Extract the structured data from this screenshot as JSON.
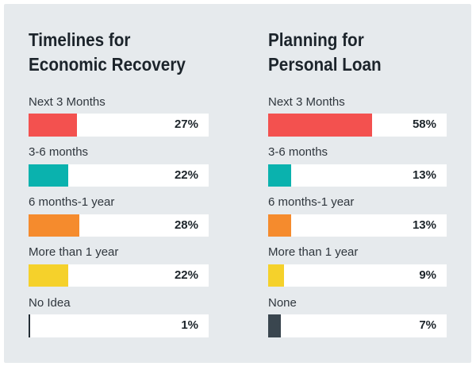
{
  "page": {
    "background": "#ffffff",
    "card_background": "#e6eaed"
  },
  "chart_data": [
    {
      "type": "bar",
      "orientation": "horizontal",
      "title": "Timelines for Economic Recovery",
      "title_lines": [
        "Timelines for",
        "Economic Recovery"
      ],
      "categories": [
        "Next 3 Months",
        "3-6 months",
        "6 months-1 year",
        "More than 1 year",
        "No Idea"
      ],
      "values": [
        27,
        22,
        28,
        22,
        1
      ],
      "value_labels": [
        "27%",
        "22%",
        "28%",
        "22%",
        "1%"
      ],
      "bar_colors": [
        "#f3514f",
        "#0ab2ae",
        "#f58b2d",
        "#f5d12b",
        "#232d35"
      ],
      "xlim": [
        0,
        100
      ],
      "grid": false,
      "legend": false
    },
    {
      "type": "bar",
      "orientation": "horizontal",
      "title": "Planning for Personal Loan",
      "title_lines": [
        "Planning for",
        "Personal Loan"
      ],
      "categories": [
        "Next 3 Months",
        "3-6 months",
        "6 months-1 year",
        "More than 1 year",
        "None"
      ],
      "values": [
        58,
        13,
        13,
        9,
        7
      ],
      "value_labels": [
        "58%",
        "13%",
        "13%",
        "9%",
        "7%"
      ],
      "bar_colors": [
        "#f3514f",
        "#0ab2ae",
        "#f58b2d",
        "#f5d12b",
        "#3a464f"
      ],
      "xlim": [
        0,
        100
      ],
      "grid": false,
      "legend": false
    }
  ]
}
